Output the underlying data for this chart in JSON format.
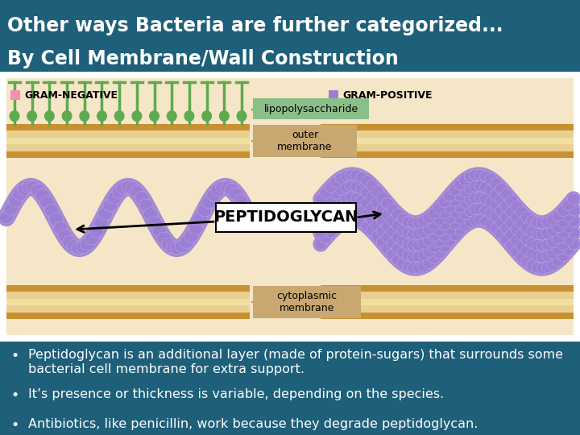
{
  "title_line1": "Other ways Bacteria are further categorized...",
  "title_line2": "By Cell Membrane/Wall Construction",
  "title_bg_color": "#1e5f7a",
  "title_text_color": "#ffffff",
  "diagram_bg_color": "#f5e6c8",
  "bottom_bg_color": "#1e5f7a",
  "bottom_text_color": "#ffffff",
  "bullet_points": [
    "Peptidoglycan is an additional layer (made of protein-sugars) that surrounds some bacterial cell membrane for extra support.",
    "It’s presence or thickness is variable, depending on the species.",
    "Antibiotics, like penicillin, work because they degrade peptidoglycan."
  ],
  "gram_neg_label": "GRAM-NEGATIVE",
  "gram_pos_label": "GRAM-POSITIVE",
  "gram_neg_color": "#f48fb1",
  "gram_pos_color": "#9b7fd4",
  "peptidoglycan_label": "PEPTIDOGLYCAN",
  "lipopoly_label": "lipopolysaccharide",
  "outer_membrane_label": "outer\nmembrane",
  "cytoplasmic_label": "cytoplasmic\nmembrane",
  "cell_bg_color": "#f5e6c8",
  "membrane_golden_color": "#c89030",
  "membrane_tan_color": "#e8d090",
  "membrane_light_color": "#f0dfa0",
  "peptido_color": "#9b7fd4",
  "peptido_light_color": "#c4aee8",
  "green_protein_color": "#5daa50",
  "label_box_lipo_color": "#8bbf8a",
  "label_box_mem_color": "#c8a870",
  "font_size_title": 17,
  "font_size_bullets": 11.5,
  "font_size_labels": 9,
  "font_size_gram": 9,
  "font_size_peptido": 14
}
